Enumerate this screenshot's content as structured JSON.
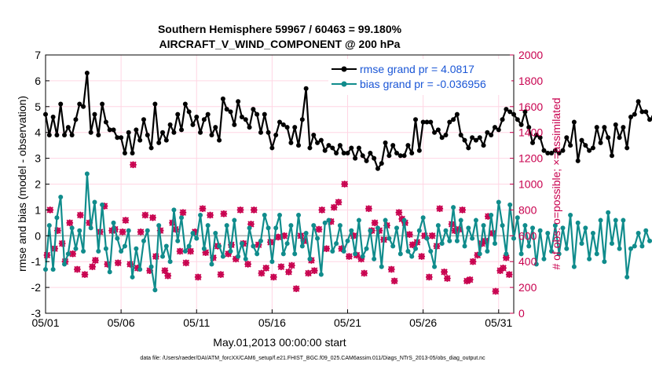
{
  "chart_data": {
    "type": "line",
    "title": "Southern Hemisphere 59967 / 60463 = 99.180%",
    "subtitle": "AIRCRAFT_V_WIND_COMPONENT @ 200 hPa",
    "xlabel": "May.01,2013 00:00:00 start",
    "ylabel": "rmse and bias (model - observation)",
    "ylabel_right": "# of obs: o=possible; ×=assimilated",
    "xlim": [
      1,
      32
    ],
    "ylim": [
      -3,
      7
    ],
    "ylim_right": [
      0,
      2000
    ],
    "x_ticks": [
      1,
      6,
      11,
      16,
      21,
      26,
      31
    ],
    "x_tick_labels": [
      "05/01",
      "05/06",
      "05/11",
      "05/16",
      "05/21",
      "05/26",
      "05/31"
    ],
    "y_ticks": [
      -3,
      -2,
      -1,
      0,
      1,
      2,
      3,
      4,
      5,
      6,
      7
    ],
    "y_tick_labels": [
      "-3",
      "-2",
      "-1",
      "0",
      "1",
      "2",
      "3",
      "4",
      "5",
      "6",
      "7"
    ],
    "y2_ticks": [
      0,
      200,
      400,
      600,
      800,
      1000,
      1200,
      1400,
      1600,
      1800,
      2000
    ],
    "y2_tick_labels": [
      "0",
      "200",
      "400",
      "600",
      "800",
      "1000",
      "1200",
      "1400",
      "1600",
      "1800",
      "2000"
    ],
    "legend_position": "top-right",
    "series": [
      {
        "name": "rmse grand pr = 4.0817",
        "color": "#000000",
        "x_start": 1.0,
        "x_step": 0.25,
        "values": [
          4.7,
          3.9,
          4.6,
          3.9,
          5.1,
          3.9,
          4.2,
          3.9,
          4.5,
          5.1,
          5.0,
          6.3,
          4.0,
          4.7,
          3.9,
          5.1,
          4.4,
          4.1,
          4.1,
          3.8,
          3.8,
          3.2,
          4.0,
          3.2,
          4.1,
          3.7,
          4.5,
          3.9,
          3.4,
          5.1,
          3.6,
          4.0,
          3.7,
          4.3,
          4.0,
          4.7,
          4.1,
          5.1,
          4.8,
          4.3,
          4.6,
          4.0,
          4.5,
          4.7,
          3.9,
          4.2,
          3.7,
          5.3,
          4.9,
          4.8,
          4.3,
          5.2,
          4.6,
          4.5,
          4.2,
          4.9,
          4.7,
          4.0,
          4.7,
          4.0,
          3.4,
          3.9,
          4.4,
          4.3,
          4.2,
          3.6,
          4.2,
          3.5,
          4.5,
          5.7,
          3.4,
          3.9,
          3.6,
          3.7,
          3.3,
          3.5,
          3.4,
          3.2,
          3.5,
          3.2,
          3.2,
          3.4,
          3.0,
          3.4,
          3.1,
          2.9,
          3.2,
          3.0,
          2.6,
          2.8,
          3.6,
          3.1,
          3.5,
          3.2,
          3.1,
          3.1,
          3.5,
          3.2,
          4.5,
          3.3,
          4.4,
          4.4,
          4.4,
          4.0,
          4.1,
          3.8,
          3.9,
          4.4,
          4.5,
          4.7,
          3.9,
          3.7,
          3.4,
          3.8,
          3.7,
          3.8,
          3.5,
          4.0,
          3.9,
          4.2,
          4.1,
          4.5,
          4.9,
          4.8,
          4.7,
          4.5,
          4.3,
          4.8,
          4.2,
          3.6,
          3.9,
          3.8,
          3.3,
          3.2,
          3.2,
          3.3,
          3.2,
          3.3,
          3.8,
          3.5,
          4.4,
          2.9,
          3.7,
          3.5,
          3.3,
          3.4,
          4.2,
          3.6,
          4.2,
          3.8,
          3.1,
          4.3,
          3.8,
          4.2,
          3.4,
          4.6,
          4.7,
          5.2,
          4.8,
          4.8,
          4.5,
          4.6,
          5.0
        ]
      },
      {
        "name": "bias grand pr = -0.036956",
        "color": "#108c8c",
        "x_start": 1.0,
        "x_step": 0.25,
        "values": [
          -1.3,
          0.4,
          -1.3,
          0.7,
          1.5,
          -1.1,
          -0.7,
          0.3,
          -0.5,
          0.2,
          -0.6,
          2.4,
          0.3,
          1.3,
          -0.6,
          1.2,
          -0.5,
          -1.4,
          0.5,
          -0.1,
          -0.6,
          -0.4,
          0.2,
          -1.6,
          -0.5,
          -1.3,
          -0.2,
          0.2,
          -1.2,
          -2.1,
          0.4,
          -0.8,
          -0.4,
          -1.0,
          1.0,
          -0.2,
          0.7,
          -0.6,
          -0.4,
          0.1,
          -0.1,
          0.8,
          -0.5,
          0.4,
          -1.1,
          0.1,
          -0.4,
          -0.8,
          0.4,
          -0.6,
          0.6,
          -0.8,
          -0.3,
          -0.9,
          0.3,
          -0.4,
          -0.7,
          -0.2,
          0.8,
          0.3,
          -1.0,
          0.3,
          0.8,
          -0.7,
          -0.3,
          0.4,
          -0.7,
          0.8,
          -0.4,
          0.1,
          -0.9,
          0.4,
          -0.1,
          -1.5,
          0.5,
          0.6,
          -0.6,
          -0.3,
          0.4,
          -0.6,
          -0.2,
          0.2,
          -0.7,
          0.6,
          -0.8,
          -0.5,
          0.2,
          -0.9,
          0.3,
          -1.2,
          0.6,
          -0.1,
          -0.4,
          0.3,
          -0.7,
          0.6,
          -0.6,
          -0.8,
          -0.5,
          0.2,
          0.7,
          -0.1,
          -0.6,
          -1.2,
          0.4,
          -0.3,
          0.2,
          -0.2,
          1.1,
          -0.2,
          0.6,
          -0.4,
          0.3,
          -0.1,
          0.6,
          -0.7,
          0.4,
          -0.6,
          0.8,
          -0.3,
          1.3,
          0.4,
          -0.7,
          1.2,
          -0.1,
          0.7,
          -0.7,
          0.4,
          -0.4,
          0.3,
          -1.1,
          0.2,
          -0.9,
          0.1,
          -0.6,
          0.4,
          -0.7,
          0.3,
          -0.5,
          0.8,
          -1.2,
          0.5,
          -0.3,
          0.3,
          -0.9,
          0.1,
          -0.7,
          0.6,
          -1.0,
          0.9,
          -0.3,
          0.6,
          -0.5,
          0.6,
          -1.6,
          -0.5,
          -0.4,
          0.1,
          -0.4,
          0.2,
          -0.2
        ]
      }
    ],
    "obs_possible": {
      "name": "possible",
      "color": "#c8004e",
      "points": [
        [
          1.1,
          450
        ],
        [
          1.3,
          800
        ],
        [
          1.6,
          500
        ],
        [
          1.8,
          640
        ],
        [
          2.1,
          540
        ],
        [
          2.3,
          400
        ],
        [
          2.6,
          700
        ],
        [
          2.8,
          460
        ],
        [
          3.1,
          340
        ],
        [
          3.3,
          760
        ],
        [
          3.6,
          300
        ],
        [
          3.9,
          700
        ],
        [
          4.1,
          360
        ],
        [
          4.3,
          410
        ],
        [
          4.6,
          630
        ],
        [
          4.9,
          830
        ],
        [
          5.1,
          380
        ],
        [
          5.4,
          640
        ],
        [
          5.6,
          650
        ],
        [
          5.8,
          390
        ],
        [
          6.1,
          630
        ],
        [
          6.3,
          720
        ],
        [
          6.6,
          380
        ],
        [
          6.8,
          1150
        ],
        [
          7.1,
          350
        ],
        [
          7.3,
          630
        ],
        [
          7.6,
          760
        ],
        [
          7.9,
          330
        ],
        [
          8.1,
          740
        ],
        [
          8.3,
          440
        ],
        [
          8.6,
          640
        ],
        [
          8.9,
          330
        ],
        [
          9.1,
          290
        ],
        [
          9.4,
          700
        ],
        [
          9.6,
          650
        ],
        [
          9.9,
          480
        ],
        [
          10.1,
          780
        ],
        [
          10.3,
          390
        ],
        [
          10.6,
          480
        ],
        [
          10.9,
          630
        ],
        [
          11.1,
          280
        ],
        [
          11.4,
          810
        ],
        [
          11.6,
          470
        ],
        [
          11.9,
          760
        ],
        [
          12.1,
          430
        ],
        [
          12.4,
          520
        ],
        [
          12.6,
          300
        ],
        [
          12.8,
          770
        ],
        [
          13.1,
          460
        ],
        [
          13.3,
          530
        ],
        [
          13.6,
          420
        ],
        [
          13.9,
          800
        ],
        [
          14.1,
          540
        ],
        [
          14.4,
          380
        ],
        [
          14.6,
          690
        ],
        [
          14.8,
          800
        ],
        [
          15.1,
          530
        ],
        [
          15.3,
          310
        ],
        [
          15.6,
          350
        ],
        [
          15.9,
          550
        ],
        [
          16.1,
          280
        ],
        [
          16.4,
          590
        ],
        [
          16.6,
          360
        ],
        [
          16.8,
          600
        ],
        [
          17.1,
          320
        ],
        [
          17.3,
          370
        ],
        [
          17.6,
          190
        ],
        [
          17.9,
          600
        ],
        [
          18.1,
          560
        ],
        [
          18.4,
          310
        ],
        [
          18.6,
          410
        ],
        [
          18.8,
          330
        ],
        [
          19.1,
          650
        ],
        [
          19.3,
          800
        ],
        [
          19.6,
          500
        ],
        [
          19.9,
          710
        ],
        [
          20.1,
          820
        ],
        [
          20.4,
          860
        ],
        [
          20.6,
          500
        ],
        [
          20.8,
          1000
        ],
        [
          21.1,
          440
        ],
        [
          21.4,
          600
        ],
        [
          21.6,
          450
        ],
        [
          21.9,
          420
        ],
        [
          22.1,
          310
        ],
        [
          22.4,
          810
        ],
        [
          22.6,
          640
        ],
        [
          22.8,
          700
        ],
        [
          23.1,
          640
        ],
        [
          23.4,
          570
        ],
        [
          23.6,
          680
        ],
        [
          23.9,
          340
        ],
        [
          24.1,
          250
        ],
        [
          24.4,
          780
        ],
        [
          24.6,
          730
        ],
        [
          24.8,
          700
        ],
        [
          25.1,
          610
        ],
        [
          25.3,
          530
        ],
        [
          25.6,
          550
        ],
        [
          25.9,
          440
        ],
        [
          26.1,
          600
        ],
        [
          26.4,
          280
        ],
        [
          26.6,
          600
        ],
        [
          26.9,
          520
        ],
        [
          27.1,
          810
        ],
        [
          27.4,
          320
        ],
        [
          27.6,
          270
        ],
        [
          27.9,
          690
        ],
        [
          28.1,
          640
        ],
        [
          28.4,
          650
        ],
        [
          28.6,
          800
        ],
        [
          28.9,
          250
        ],
        [
          29.1,
          260
        ],
        [
          29.3,
          400
        ],
        [
          29.6,
          450
        ],
        [
          29.9,
          540
        ],
        [
          30.1,
          560
        ],
        [
          30.3,
          750
        ],
        [
          30.6,
          620
        ],
        [
          30.8,
          170
        ],
        [
          31.1,
          330
        ],
        [
          31.3,
          350
        ],
        [
          31.5,
          430
        ],
        [
          31.7,
          300
        ]
      ]
    },
    "obs_assimilated": {
      "name": "assimilated",
      "color": "#c8004e"
    }
  },
  "footnote": "data file: /Users/raeder/DAI/ATM_forcXX/CAM6_setup/f.e21.FHIST_BGC.f09_025.CAM6assim.011/Diags_NTrS_2013-05/obs_diag_output.nc"
}
